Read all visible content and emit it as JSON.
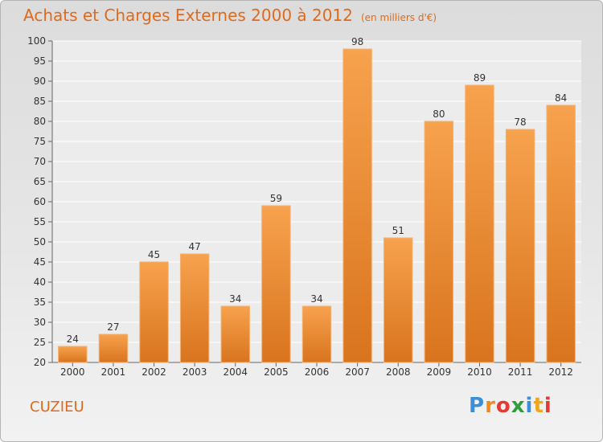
{
  "title": "Achats et Charges Externes 2000 à 2012",
  "unit": "(en milliers d'€)",
  "commune": "CUZIEU",
  "logo": {
    "letters": [
      "P",
      "r",
      "o",
      "x",
      "i",
      "t",
      "i"
    ],
    "colors": [
      "#3a8fd6",
      "#f08a1c",
      "#e53935",
      "#2e9e3a",
      "#3a8fd6",
      "#f0a51c",
      "#e53935"
    ]
  },
  "chart_data": {
    "type": "bar",
    "title": "Achats et Charges Externes 2000 à 2012",
    "subtitle": "(en milliers d'€)",
    "categories": [
      "2000",
      "2001",
      "2002",
      "2003",
      "2004",
      "2005",
      "2006",
      "2007",
      "2008",
      "2009",
      "2010",
      "2011",
      "2012"
    ],
    "values": [
      24,
      27,
      45,
      47,
      34,
      59,
      34,
      98,
      51,
      80,
      89,
      78,
      84
    ],
    "data_labels": [
      "24",
      "27",
      "45",
      "47",
      "34",
      "59",
      "34",
      "98",
      "51",
      "80",
      "89",
      "78",
      "84"
    ],
    "ylim": [
      20,
      100
    ],
    "yticks": [
      "20",
      "25",
      "30",
      "35",
      "40",
      "45",
      "50",
      "55",
      "60",
      "65",
      "70",
      "75",
      "80",
      "85",
      "90",
      "95",
      "100"
    ],
    "grid": true,
    "bar_color": "#f0912f"
  }
}
